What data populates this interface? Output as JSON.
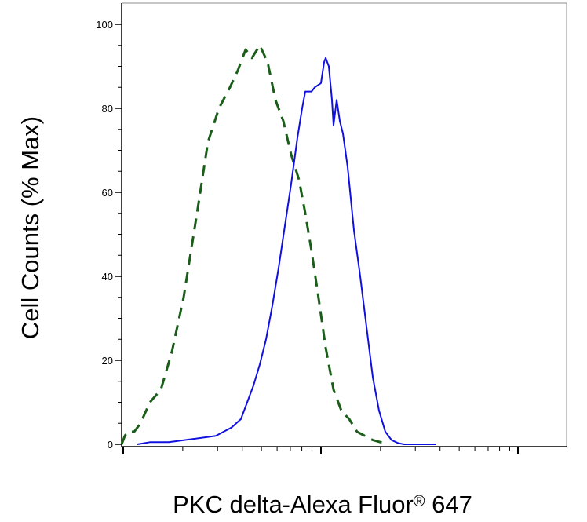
{
  "chart_data": {
    "type": "line",
    "title": "",
    "xlabel": "PKC delta-Alexa Fluor",
    "xlabel_mark": "®",
    "xlabel_suffix": " 647",
    "ylabel": "Cell Counts (% Max)",
    "x_scale": "log",
    "xlim": [
      0,
      100
    ],
    "ylim": [
      0,
      100
    ],
    "yticks": [
      "0",
      "20",
      "40",
      "60",
      "80",
      "100"
    ],
    "ytick_values": [
      0,
      20,
      40,
      60,
      80,
      100
    ],
    "grid": false,
    "legend": "none",
    "series": [
      {
        "color": "#1a5e1a",
        "style": "dashed",
        "points": [
          [
            0.0,
            0
          ],
          [
            1.6,
            2
          ],
          [
            3.2,
            3
          ],
          [
            6.4,
            3
          ],
          [
            9.6,
            5
          ],
          [
            14.4,
            10
          ],
          [
            20.0,
            13
          ],
          [
            25.6,
            22
          ],
          [
            31.6,
            35
          ],
          [
            38.4,
            55
          ],
          [
            44.0,
            72
          ],
          [
            49.6,
            80
          ],
          [
            55.2,
            85
          ],
          [
            59.2,
            89
          ],
          [
            63.2,
            94
          ],
          [
            66.4,
            92
          ],
          [
            70.4,
            95
          ],
          [
            74.4,
            91
          ],
          [
            78.4,
            82
          ],
          [
            82.4,
            77
          ],
          [
            86.4,
            69
          ],
          [
            90.4,
            63
          ],
          [
            93.6,
            55
          ],
          [
            96.8,
            46
          ],
          [
            100.0,
            36
          ],
          [
            104.0,
            23
          ],
          [
            108.0,
            13
          ],
          [
            112.0,
            8
          ],
          [
            116.0,
            6
          ],
          [
            120.0,
            3
          ],
          [
            124.0,
            2
          ],
          [
            128.0,
            1
          ],
          [
            132.0,
            0.5
          ],
          [
            136.0,
            0
          ]
        ]
      },
      {
        "color": "#1010e0",
        "style": "solid",
        "points": [
          [
            8.0,
            0
          ],
          [
            14.4,
            0.5
          ],
          [
            24.0,
            0.5
          ],
          [
            32.0,
            1
          ],
          [
            48.0,
            2
          ],
          [
            56.0,
            4
          ],
          [
            60.8,
            6
          ],
          [
            64.0,
            10
          ],
          [
            67.2,
            14
          ],
          [
            70.4,
            19
          ],
          [
            73.6,
            25
          ],
          [
            76.8,
            33
          ],
          [
            80.0,
            42
          ],
          [
            83.2,
            52
          ],
          [
            86.4,
            62
          ],
          [
            89.6,
            73
          ],
          [
            92.0,
            80
          ],
          [
            93.6,
            84
          ],
          [
            96.8,
            84
          ],
          [
            98.4,
            85
          ],
          [
            101.6,
            86
          ],
          [
            103.2,
            91
          ],
          [
            104.0,
            92
          ],
          [
            105.6,
            90
          ],
          [
            107.2,
            82
          ],
          [
            108.0,
            76
          ],
          [
            109.6,
            82
          ],
          [
            111.2,
            77
          ],
          [
            112.8,
            74
          ],
          [
            115.2,
            66
          ],
          [
            118.4,
            51
          ],
          [
            121.6,
            40
          ],
          [
            124.8,
            28
          ],
          [
            128.0,
            16
          ],
          [
            131.2,
            8
          ],
          [
            134.4,
            3
          ],
          [
            137.6,
            1
          ],
          [
            140.8,
            0.3
          ],
          [
            144.0,
            0
          ],
          [
            160.0,
            0
          ]
        ]
      }
    ]
  }
}
